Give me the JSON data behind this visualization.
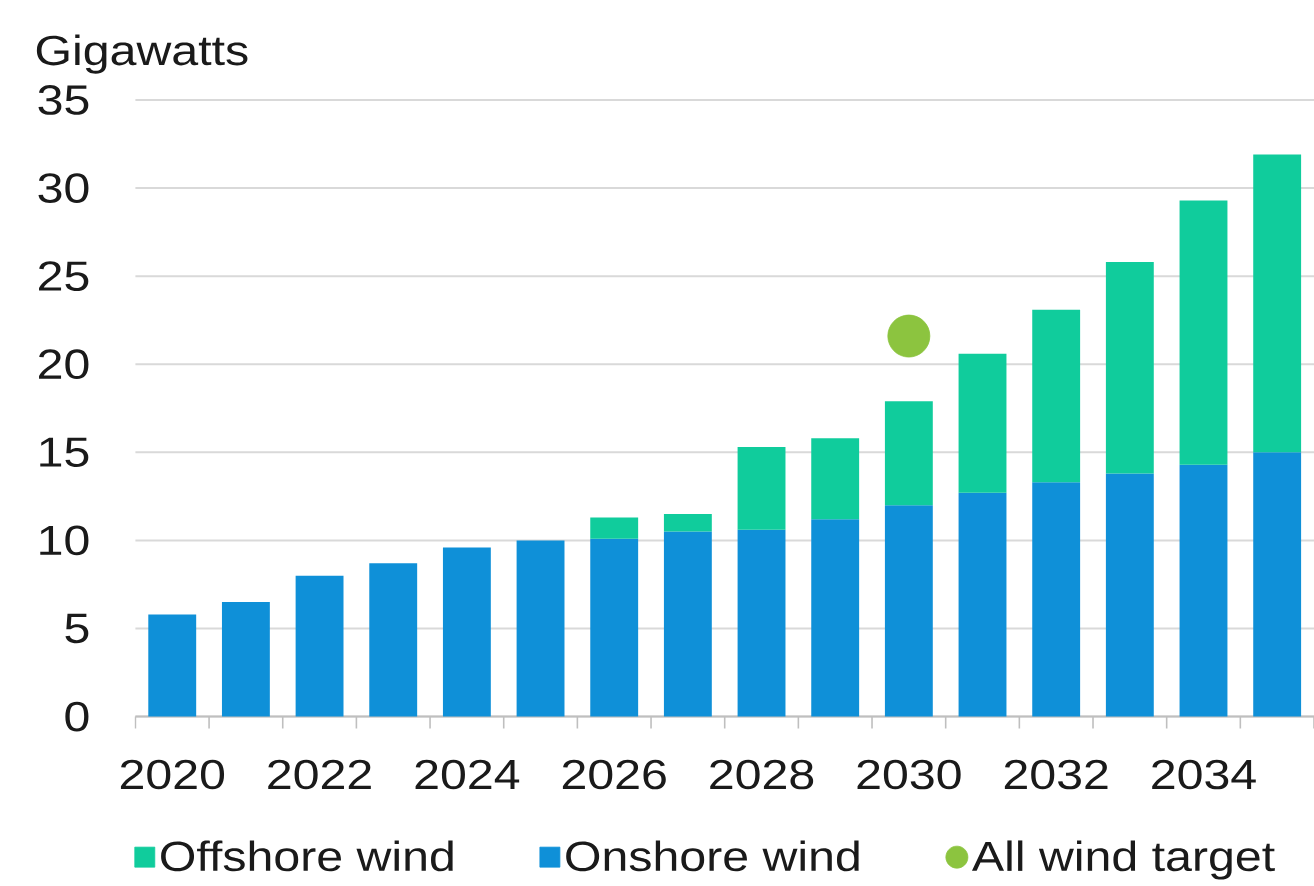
{
  "chart_data": {
    "type": "bar",
    "stacked": true,
    "ylabel": "Gigawatts",
    "categories": [
      "2020",
      null,
      "2022",
      null,
      "2024",
      null,
      "2026",
      null,
      "2028",
      null,
      "2030",
      null,
      "2032",
      null,
      "2034",
      null
    ],
    "series": [
      {
        "name": "Onshore wind",
        "color": "#0f90d8",
        "values": [
          5.8,
          6.5,
          8.0,
          8.7,
          9.6,
          10.0,
          10.1,
          10.5,
          10.6,
          11.2,
          12.0,
          12.7,
          13.3,
          13.8,
          14.3,
          15.0
        ]
      },
      {
        "name": "Offshore wind",
        "color": "#10cc9c",
        "values": [
          null,
          null,
          null,
          null,
          null,
          null,
          1.2,
          1.0,
          4.7,
          4.6,
          5.9,
          7.9,
          9.8,
          12.0,
          15.0,
          16.9
        ]
      },
      {
        "name": "All wind target",
        "type": "scatter",
        "marker": "circle",
        "color": "#8cc43f",
        "values": [
          null,
          null,
          null,
          null,
          null,
          null,
          null,
          null,
          null,
          null,
          21.6,
          null,
          null,
          null,
          null,
          null
        ]
      }
    ],
    "ylim": [
      0,
      35
    ],
    "yticks": [
      0,
      5,
      10,
      15,
      20,
      25,
      30,
      35
    ],
    "grid": "y",
    "legend": "bottom"
  }
}
